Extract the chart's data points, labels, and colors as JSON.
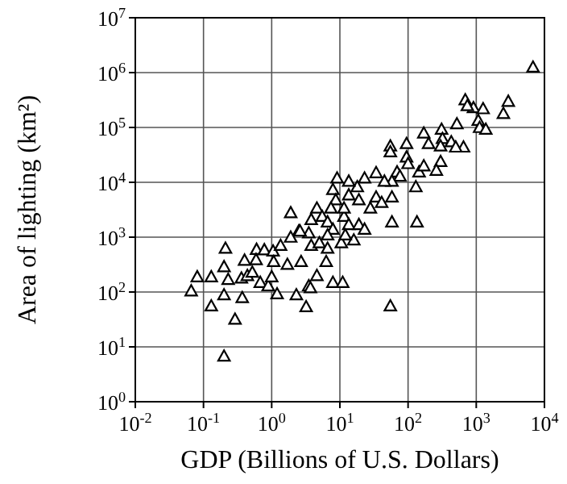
{
  "chart_data": {
    "type": "scatter",
    "xlabel": "GDP (Billions of U.S. Dollars)",
    "ylabel": "Area of lighting (km²)",
    "log": "xy",
    "grid": true,
    "marker": "triangle",
    "xlim": [
      0.01,
      10000
    ],
    "ylim": [
      1,
      10000000
    ],
    "xticks": [
      {
        "value": 0.01,
        "label": "10$^{-2}$"
      },
      {
        "value": 0.1,
        "label": "10$^{-1}$"
      },
      {
        "value": 1,
        "label": "10$^{0}$"
      },
      {
        "value": 10,
        "label": "10$^{1}$"
      },
      {
        "value": 100,
        "label": "10$^{2}$"
      },
      {
        "value": 1000,
        "label": "10$^{3}$"
      },
      {
        "value": 10000,
        "label": "10$^{4}$"
      }
    ],
    "yticks": [
      {
        "value": 1,
        "label": "10$^{0}$"
      },
      {
        "value": 10,
        "label": "10$^{1}$"
      },
      {
        "value": 100,
        "label": "10$^{2}$"
      },
      {
        "value": 1000,
        "label": "10$^{3}$"
      },
      {
        "value": 10000,
        "label": "10$^{4}$"
      },
      {
        "value": 100000,
        "label": "10$^{5}$"
      },
      {
        "value": 1000000,
        "label": "10$^{6}$"
      },
      {
        "value": 10000000,
        "label": "10$^{7}$"
      }
    ],
    "series": [
      {
        "color": "#000000",
        "x": [
          0.066,
          0.081,
          0.13,
          0.13,
          0.2,
          0.29,
          0.2,
          0.37,
          0.2,
          0.21,
          0.23,
          0.4,
          0.36,
          0.44,
          0.52,
          0.6,
          0.59,
          0.68,
          0.78,
          0.89,
          1.0,
          1.05,
          1.07,
          1.2,
          1.35,
          1.7,
          1.9,
          2.3,
          3.2,
          3.5,
          3.7,
          2.7,
          2.5,
          1.9,
          4.6,
          7.9,
          11,
          55,
          58,
          135,
          3.8,
          6.3,
          16,
          10.5,
          5.0,
          6.6,
          6800,
          690,
          910,
          1260,
          740,
          2950,
          2500,
          1070,
          1120,
          1380,
          520,
          310,
          320,
          170,
          200,
          430,
          650,
          500,
          300,
          95,
          55,
          55,
          95,
          100,
          145,
          300,
          260,
          170,
          130,
          69,
          76,
          58,
          45,
          34,
          23,
          18,
          13.5,
          9.1,
          7.9,
          8.7,
          13.5,
          19,
          28,
          34,
          41,
          58,
          4.6,
          5.5,
          3.8,
          6.6,
          11.5,
          13.5,
          19,
          23,
          3.5,
          2.6,
          7.9,
          11.5,
          7.4,
          6.6,
          12
        ],
        "values": [
          105,
          190,
          190,
          56,
          6.8,
          32,
          89,
          79,
          290,
          630,
          170,
          380,
          180,
          200,
          230,
          600,
          390,
          150,
          590,
          130,
          190,
          560,
          360,
          93,
          710,
          320,
          2800,
          89,
          54,
          130,
          120,
          360,
          1300,
          1000,
          200,
          150,
          150,
          56,
          1900,
          1900,
          710,
          360,
          890,
          790,
          790,
          630,
          1260000,
          320000,
          230000,
          220000,
          250000,
          300000,
          180000,
          135000,
          100000,
          93000,
          117000,
          93000,
          63000,
          79000,
          51000,
          55000,
          44000,
          44000,
          46000,
          51000,
          46000,
          36000,
          29000,
          22000,
          15500,
          24000,
          16600,
          20000,
          8300,
          15500,
          13000,
          10500,
          10500,
          15000,
          12000,
          8300,
          10500,
          12000,
          7400,
          4800,
          5900,
          4800,
          3400,
          5400,
          4300,
          5400,
          3400,
          2400,
          2100,
          1900,
          2400,
          1700,
          1700,
          1400,
          1200,
          1300,
          1400,
          3400,
          3400,
          1100,
          1100
        ]
      }
    ]
  }
}
